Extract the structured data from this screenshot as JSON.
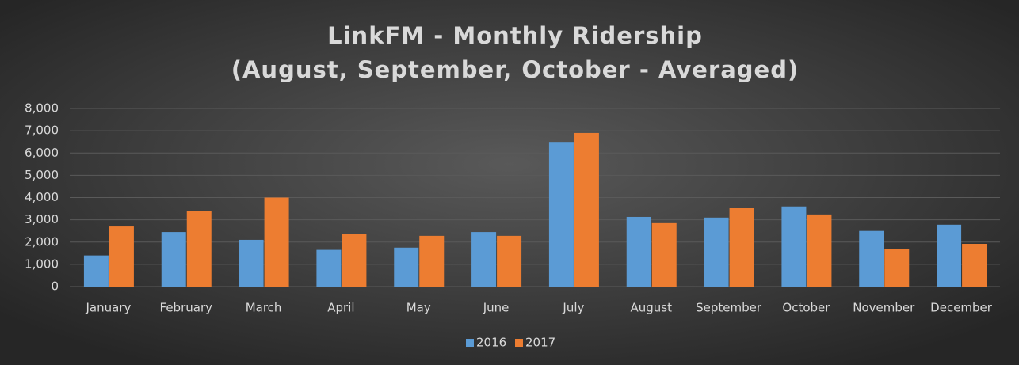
{
  "chart_data": {
    "type": "bar",
    "title": "LinkFM - Monthly Ridership",
    "subtitle": "(August, September, October - Averaged)",
    "categories": [
      "January",
      "February",
      "March",
      "April",
      "May",
      "June",
      "July",
      "August",
      "September",
      "October",
      "November",
      "December"
    ],
    "series": [
      {
        "name": "2016",
        "color": "#5b9bd5",
        "values": [
          1400,
          2450,
          2100,
          1650,
          1750,
          2450,
          6500,
          3130,
          3100,
          3600,
          2500,
          2780
        ]
      },
      {
        "name": "2017",
        "color": "#ed7d31",
        "values": [
          2700,
          3380,
          4000,
          2380,
          2280,
          2280,
          6900,
          2850,
          3520,
          3240,
          1700,
          1920
        ]
      }
    ],
    "ylim": [
      0,
      8000
    ],
    "yticks": [
      0,
      {
        "value": 1000,
        "label": "1,000"
      },
      {
        "value": 2000,
        "label": "2,000"
      },
      {
        "value": 3000,
        "label": "3,000"
      },
      {
        "value": 4000,
        "label": "4,000"
      },
      {
        "value": 5000,
        "label": "5,000"
      },
      {
        "value": 6000,
        "label": "6,000"
      },
      {
        "value": 7000,
        "label": "7,000"
      },
      {
        "value": 8000,
        "label": "8,000"
      }
    ],
    "grid": true,
    "legend": "bottom"
  }
}
